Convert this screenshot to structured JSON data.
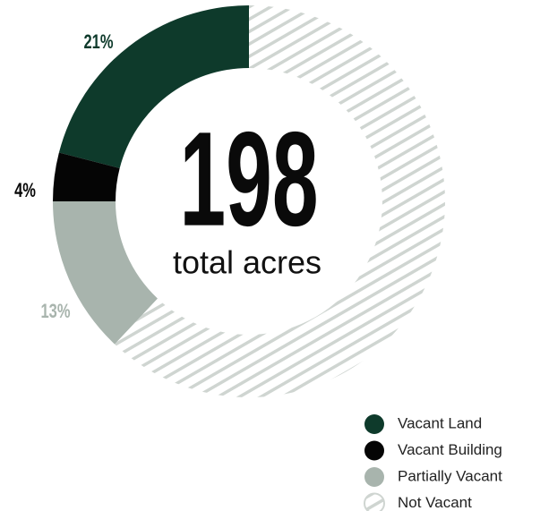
{
  "chart_data": {
    "type": "donut",
    "center_text": "198",
    "center_label": "total acres",
    "categories": [
      "Vacant Land",
      "Vacant Building",
      "Partially Vacant",
      "Not Vacant"
    ],
    "values": [
      21,
      4,
      13,
      62
    ],
    "value_labels": [
      "21%",
      "4%",
      "13%",
      null
    ],
    "colors": [
      "#0e3a2b",
      "#050505",
      "#a8b4ad",
      "hatch"
    ],
    "direction": "counterclockwise",
    "legend": "bottom-right"
  }
}
